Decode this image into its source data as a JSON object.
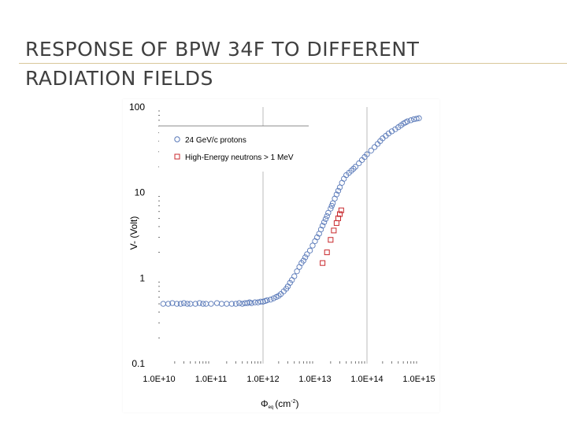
{
  "slide": {
    "title_line1": "RESPONSE OF BPW 34F TO DIFFERENT",
    "title_line2": "RADIATION FIELDS",
    "accent_color": "#d9c79a"
  },
  "chart_data": {
    "type": "scatter",
    "title": "",
    "xlabel": "Φeq (cm-2)",
    "xlabel_main": "Φ",
    "xlabel_sub": "eq",
    "xlabel_unit_prefix": "(cm",
    "xlabel_unit_exp": "-2",
    "xlabel_unit_suffix": ")",
    "ylabel": "V- (Volt)",
    "xscale": "log",
    "yscale": "log",
    "xlim": [
      10000000000.0,
      1000000000000000.0
    ],
    "ylim": [
      0.1,
      100
    ],
    "x_ticks": [
      10000000000.0,
      100000000000.0,
      1000000000000.0,
      10000000000000.0,
      100000000000000.0,
      1000000000000000.0
    ],
    "x_tick_labels": [
      "1.0E+10",
      "1.0E+11",
      "1.0E+12",
      "1.0E+13",
      "1.0E+14",
      "1.0E+15"
    ],
    "y_ticks": [
      0.1,
      1,
      10,
      100
    ],
    "y_tick_labels": [
      "0.1",
      "1",
      "10",
      "100"
    ],
    "grid": "vertical at 1e12 and 1e14",
    "legend_position": "top-left",
    "series": [
      {
        "name": "24 GeV/c protons",
        "marker": "circle",
        "color": "#5878b8",
        "x": [
          12000000000.0,
          15000000000.0,
          18000000000.0,
          22000000000.0,
          26000000000.0,
          30000000000.0,
          35000000000.0,
          40000000000.0,
          50000000000.0,
          60000000000.0,
          70000000000.0,
          80000000000.0,
          100000000000.0,
          130000000000.0,
          160000000000.0,
          200000000000.0,
          250000000000.0,
          300000000000.0,
          350000000000.0,
          400000000000.0,
          450000000000.0,
          500000000000.0,
          550000000000.0,
          600000000000.0,
          700000000000.0,
          800000000000.0,
          900000000000.0,
          1000000000000.0,
          1100000000000.0,
          1200000000000.0,
          1400000000000.0,
          1600000000000.0,
          1800000000000.0,
          2000000000000.0,
          2200000000000.0,
          2500000000000.0,
          2800000000000.0,
          3000000000000.0,
          3300000000000.0,
          3600000000000.0,
          4000000000000.0,
          4500000000000.0,
          5000000000000.0,
          5500000000000.0,
          6000000000000.0,
          6500000000000.0,
          7000000000000.0,
          8000000000000.0,
          9000000000000.0,
          10000000000000.0,
          11000000000000.0,
          12000000000000.0,
          13000000000000.0,
          14000000000000.0,
          15000000000000.0,
          16000000000000.0,
          17000000000000.0,
          18000000000000.0,
          20000000000000.0,
          21000000000000.0,
          22000000000000.0,
          24000000000000.0,
          26000000000000.0,
          28000000000000.0,
          30000000000000.0,
          33000000000000.0,
          36000000000000.0,
          40000000000000.0,
          45000000000000.0,
          50000000000000.0,
          55000000000000.0,
          60000000000000.0,
          70000000000000.0,
          80000000000000.0,
          90000000000000.0,
          100000000000000.0,
          120000000000000.0,
          140000000000000.0,
          160000000000000.0,
          180000000000000.0,
          200000000000000.0,
          230000000000000.0,
          260000000000000.0,
          300000000000000.0,
          350000000000000.0,
          400000000000000.0,
          450000000000000.0,
          500000000000000.0,
          550000000000000.0,
          600000000000000.0,
          700000000000000.0,
          800000000000000.0,
          900000000000000.0,
          1000000000000000.0
        ],
        "y": [
          0.5,
          0.5,
          0.51,
          0.5,
          0.5,
          0.51,
          0.5,
          0.5,
          0.5,
          0.51,
          0.5,
          0.5,
          0.5,
          0.51,
          0.5,
          0.5,
          0.5,
          0.5,
          0.51,
          0.5,
          0.51,
          0.51,
          0.52,
          0.51,
          0.52,
          0.52,
          0.53,
          0.53,
          0.54,
          0.55,
          0.56,
          0.58,
          0.6,
          0.62,
          0.65,
          0.7,
          0.75,
          0.8,
          0.88,
          0.95,
          1.05,
          1.2,
          1.35,
          1.5,
          1.6,
          1.75,
          1.9,
          2.1,
          2.4,
          2.7,
          3,
          3.3,
          3.7,
          4.1,
          4.5,
          4.9,
          5.3,
          5.8,
          6.5,
          7,
          7.5,
          8.5,
          9.5,
          10.5,
          11.5,
          13,
          14.5,
          16,
          17,
          18,
          19,
          20,
          22,
          24,
          26,
          28,
          31,
          34,
          37,
          40,
          43,
          46,
          49,
          52,
          55,
          58,
          61,
          64,
          66,
          68,
          70,
          72,
          73,
          74
        ]
      },
      {
        "name": "High-Energy neutrons > 1 MeV",
        "marker": "square",
        "color": "#c8282c",
        "x": [
          14000000000000.0,
          17000000000000.0,
          20000000000000.0,
          23000000000000.0,
          26000000000000.0,
          28000000000000.0,
          30000000000000.0,
          32000000000000.0
        ],
        "y": [
          1.5,
          2,
          2.8,
          3.6,
          4.4,
          5,
          5.6,
          6.2
        ]
      }
    ]
  }
}
